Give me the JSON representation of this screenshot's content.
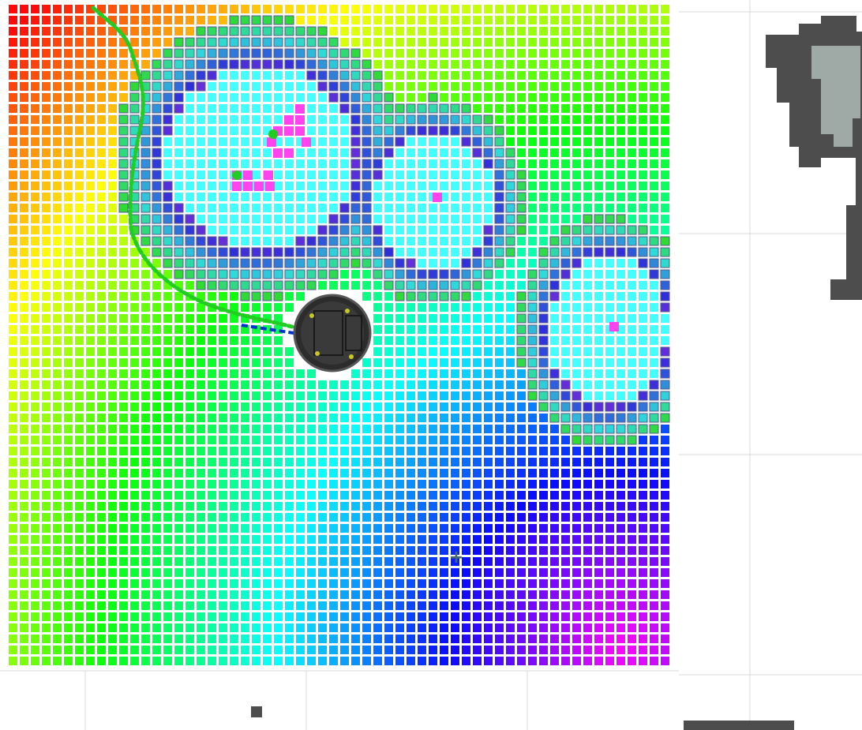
{
  "scene": {
    "kind": "rviz-costmap-view",
    "background_color": "#ffffff",
    "grid_line_color": "#d8d8d8",
    "obstacle_color": "#4d4d4d",
    "unknown_color": "#9fa9a5",
    "marker_color": "#555555"
  },
  "costmap": {
    "cell_colors": {
      "lethal": "#ff44ee",
      "inscribed": "#44ffff",
      "ring_stroke": "#5a5a8a"
    }
  },
  "robot": {
    "label": "",
    "body_color": "#2c2c2c",
    "rim_color": "#555555",
    "footprint_clear_color": "#ffffff"
  },
  "paths": {
    "global_plan_color": "#22cc22",
    "local_plan_color": "#0033cc"
  },
  "goal_marker": {
    "symbol": "+",
    "color": "#4a6a6a"
  }
}
